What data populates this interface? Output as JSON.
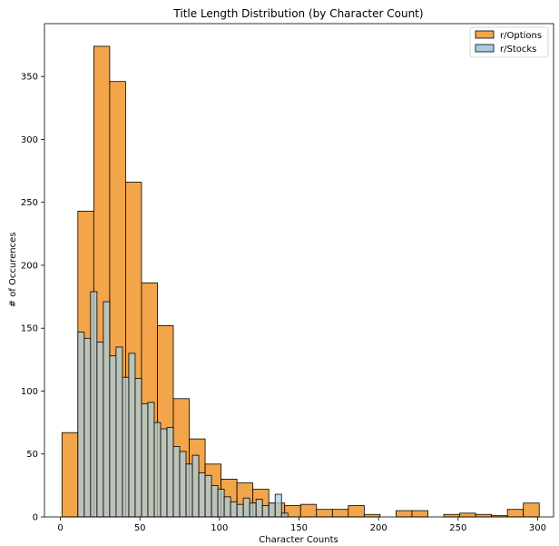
{
  "chart_data": {
    "type": "bar",
    "title": "Title Length Distribution (by Character Count)",
    "xlabel": "Character Counts",
    "ylabel": "# of Occurences",
    "xlim": [
      -10,
      310
    ],
    "ylim": [
      0,
      392
    ],
    "xticks": [
      "0",
      "50",
      "100",
      "150",
      "200",
      "250",
      "300"
    ],
    "yticks": [
      "0",
      "50",
      "100",
      "150",
      "200",
      "250",
      "300",
      "350"
    ],
    "grid": false,
    "legend": "top-right",
    "series": [
      {
        "name": "r/Options",
        "color": "#f2a54a",
        "bins": [
          {
            "x0": 1,
            "x1": 11,
            "value": 67
          },
          {
            "x0": 11,
            "x1": 21,
            "value": 243
          },
          {
            "x0": 21,
            "x1": 31,
            "value": 374
          },
          {
            "x0": 31,
            "x1": 41,
            "value": 346
          },
          {
            "x0": 41,
            "x1": 51,
            "value": 266
          },
          {
            "x0": 51,
            "x1": 61,
            "value": 186
          },
          {
            "x0": 61,
            "x1": 71,
            "value": 152
          },
          {
            "x0": 71,
            "x1": 81,
            "value": 94
          },
          {
            "x0": 81,
            "x1": 91,
            "value": 62
          },
          {
            "x0": 91,
            "x1": 101,
            "value": 42
          },
          {
            "x0": 101,
            "x1": 111,
            "value": 30
          },
          {
            "x0": 111,
            "x1": 121,
            "value": 27
          },
          {
            "x0": 121,
            "x1": 131,
            "value": 22
          },
          {
            "x0": 131,
            "x1": 141,
            "value": 11
          },
          {
            "x0": 141,
            "x1": 151,
            "value": 9
          },
          {
            "x0": 151,
            "x1": 161,
            "value": 10
          },
          {
            "x0": 161,
            "x1": 171,
            "value": 6
          },
          {
            "x0": 171,
            "x1": 181,
            "value": 6
          },
          {
            "x0": 181,
            "x1": 191,
            "value": 9
          },
          {
            "x0": 191,
            "x1": 201,
            "value": 2
          },
          {
            "x0": 201,
            "x1": 211,
            "value": 0
          },
          {
            "x0": 211,
            "x1": 221,
            "value": 5
          },
          {
            "x0": 221,
            "x1": 231,
            "value": 5
          },
          {
            "x0": 231,
            "x1": 241,
            "value": 0
          },
          {
            "x0": 241,
            "x1": 251,
            "value": 2
          },
          {
            "x0": 251,
            "x1": 261,
            "value": 3
          },
          {
            "x0": 261,
            "x1": 271,
            "value": 2
          },
          {
            "x0": 271,
            "x1": 281,
            "value": 1
          },
          {
            "x0": 281,
            "x1": 291,
            "value": 6
          },
          {
            "x0": 291,
            "x1": 301,
            "value": 11
          }
        ]
      },
      {
        "name": "r/Stocks",
        "color": "#a6cee3",
        "bins": [
          {
            "x0": 11,
            "x1": 15,
            "value": 147
          },
          {
            "x0": 15,
            "x1": 19,
            "value": 142
          },
          {
            "x0": 19,
            "x1": 23,
            "value": 179
          },
          {
            "x0": 23,
            "x1": 27,
            "value": 139
          },
          {
            "x0": 27,
            "x1": 31,
            "value": 171
          },
          {
            "x0": 31,
            "x1": 35,
            "value": 128
          },
          {
            "x0": 35,
            "x1": 39,
            "value": 135
          },
          {
            "x0": 39,
            "x1": 43,
            "value": 111
          },
          {
            "x0": 43,
            "x1": 47,
            "value": 130
          },
          {
            "x0": 47,
            "x1": 51,
            "value": 110
          },
          {
            "x0": 51,
            "x1": 55,
            "value": 90
          },
          {
            "x0": 55,
            "x1": 59,
            "value": 91
          },
          {
            "x0": 59,
            "x1": 63,
            "value": 75
          },
          {
            "x0": 63,
            "x1": 67,
            "value": 70
          },
          {
            "x0": 67,
            "x1": 71,
            "value": 71
          },
          {
            "x0": 71,
            "x1": 75,
            "value": 56
          },
          {
            "x0": 75,
            "x1": 79,
            "value": 52
          },
          {
            "x0": 79,
            "x1": 83,
            "value": 42
          },
          {
            "x0": 83,
            "x1": 87,
            "value": 49
          },
          {
            "x0": 87,
            "x1": 91,
            "value": 35
          },
          {
            "x0": 91,
            "x1": 95,
            "value": 33
          },
          {
            "x0": 95,
            "x1": 99,
            "value": 25
          },
          {
            "x0": 99,
            "x1": 103,
            "value": 22
          },
          {
            "x0": 103,
            "x1": 107,
            "value": 16
          },
          {
            "x0": 107,
            "x1": 111,
            "value": 12
          },
          {
            "x0": 111,
            "x1": 115,
            "value": 10
          },
          {
            "x0": 115,
            "x1": 119,
            "value": 15
          },
          {
            "x0": 119,
            "x1": 123,
            "value": 11
          },
          {
            "x0": 123,
            "x1": 127,
            "value": 14
          },
          {
            "x0": 127,
            "x1": 131,
            "value": 9
          },
          {
            "x0": 131,
            "x1": 135,
            "value": 11
          },
          {
            "x0": 135,
            "x1": 139,
            "value": 18
          },
          {
            "x0": 139,
            "x1": 143,
            "value": 3
          }
        ]
      }
    ]
  }
}
